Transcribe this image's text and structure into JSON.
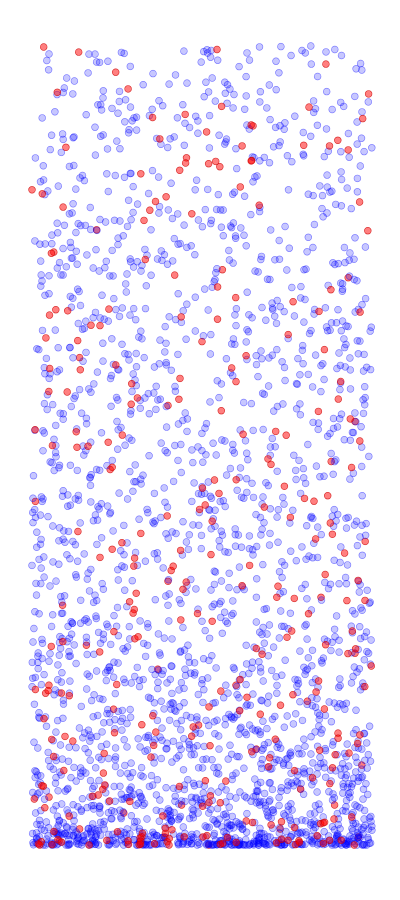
{
  "chart_data": {
    "type": "scatter",
    "title": "",
    "xlabel": "",
    "ylabel": "",
    "xlim": [
      0,
      1
    ],
    "ylim": [
      0,
      1
    ],
    "grid": false,
    "axes_visible": false,
    "legend": "none",
    "colors": {
      "blue": "#0000ff",
      "red": "#ff0000"
    },
    "series": [
      {
        "color": "#0000ff",
        "points": [
          [
            0.05,
            0.99
          ],
          [
            0.19,
            0.98
          ],
          [
            0.82,
            1.0
          ],
          [
            0.97,
            0.97
          ],
          [
            0.53,
            0.96
          ],
          [
            0.12,
            0.94
          ],
          [
            0.67,
            0.93
          ],
          [
            0.03,
            0.91
          ],
          [
            0.3,
            0.91
          ],
          [
            0.57,
            0.88
          ],
          [
            0.09,
            0.89
          ],
          [
            0.73,
            0.88
          ],
          [
            0.01,
            0.86
          ],
          [
            0.22,
            0.84
          ],
          [
            0.65,
            0.83
          ],
          [
            0.48,
            0.82
          ],
          [
            0.91,
            0.8
          ],
          [
            0.11,
            0.79
          ],
          [
            0.35,
            0.77
          ],
          [
            0.63,
            0.75
          ],
          [
            0.95,
            0.76
          ],
          [
            0.29,
            0.73
          ],
          [
            0.8,
            0.72
          ],
          [
            0.05,
            0.69
          ],
          [
            0.43,
            0.69
          ],
          [
            0.9,
            0.67
          ],
          [
            0.18,
            0.66
          ],
          [
            0.6,
            0.65
          ],
          [
            0.72,
            0.62
          ],
          [
            0.02,
            0.62
          ],
          [
            0.33,
            0.61
          ],
          [
            0.85,
            0.6
          ],
          [
            0.14,
            0.57
          ],
          [
            0.55,
            0.56
          ],
          [
            0.98,
            0.56
          ],
          [
            0.25,
            0.53
          ],
          [
            0.68,
            0.52
          ],
          [
            0.07,
            0.5
          ],
          [
            0.42,
            0.5
          ],
          [
            0.88,
            0.49
          ],
          [
            0.19,
            0.47
          ],
          [
            0.61,
            0.46
          ],
          [
            0.36,
            0.44
          ],
          [
            0.79,
            0.44
          ],
          [
            0.03,
            0.43
          ],
          [
            0.52,
            0.42
          ],
          [
            0.93,
            0.41
          ],
          [
            0.27,
            0.4
          ],
          [
            0.7,
            0.39
          ],
          [
            0.12,
            0.38
          ],
          [
            0.46,
            0.37
          ],
          [
            0.84,
            0.36
          ],
          [
            0.0,
            0.35
          ],
          [
            0.31,
            0.35
          ],
          [
            0.58,
            0.34
          ],
          [
            0.96,
            0.33
          ],
          [
            0.21,
            0.32
          ],
          [
            0.66,
            0.31
          ],
          [
            0.4,
            0.3
          ],
          [
            0.09,
            0.29
          ],
          [
            0.76,
            0.29
          ],
          [
            0.5,
            0.28
          ],
          [
            0.89,
            0.27
          ],
          [
            0.16,
            0.26
          ],
          [
            0.34,
            0.25
          ],
          [
            0.63,
            0.25
          ],
          [
            0.99,
            0.24
          ],
          [
            0.05,
            0.23
          ],
          [
            0.45,
            0.22
          ],
          [
            0.81,
            0.22
          ],
          [
            0.24,
            0.21
          ],
          [
            0.57,
            0.2
          ],
          [
            0.11,
            0.19
          ],
          [
            0.72,
            0.19
          ],
          [
            0.38,
            0.18
          ],
          [
            0.92,
            0.17
          ],
          [
            0.02,
            0.16
          ],
          [
            0.29,
            0.16
          ],
          [
            0.64,
            0.15
          ],
          [
            0.48,
            0.14
          ],
          [
            0.85,
            0.14
          ],
          [
            0.17,
            0.13
          ],
          [
            0.55,
            0.12
          ],
          [
            0.97,
            0.12
          ],
          [
            0.07,
            0.11
          ],
          [
            0.36,
            0.11
          ],
          [
            0.74,
            0.1
          ],
          [
            0.26,
            0.09
          ],
          [
            0.6,
            0.09
          ],
          [
            0.88,
            0.08
          ],
          [
            0.13,
            0.08
          ],
          [
            0.43,
            0.07
          ],
          [
            0.79,
            0.07
          ],
          [
            0.01,
            0.06
          ],
          [
            0.32,
            0.06
          ],
          [
            0.67,
            0.05
          ],
          [
            0.95,
            0.05
          ],
          [
            0.2,
            0.04
          ],
          [
            0.52,
            0.04
          ],
          [
            0.08,
            0.03
          ],
          [
            0.41,
            0.03
          ],
          [
            0.83,
            0.03
          ],
          [
            0.28,
            0.02
          ],
          [
            0.62,
            0.02
          ],
          [
            0.99,
            0.02
          ],
          [
            0.15,
            0.01
          ],
          [
            0.47,
            0.01
          ],
          [
            0.76,
            0.01
          ],
          [
            0.04,
            0.0
          ],
          [
            0.35,
            0.0
          ],
          [
            0.69,
            0.0
          ],
          [
            0.91,
            0.0
          ],
          [
            0.23,
            0.005
          ],
          [
            0.58,
            0.005
          ]
        ]
      },
      {
        "color": "#ff0000",
        "points": [
          [
            0.99,
            0.94
          ],
          [
            0.65,
            0.9
          ],
          [
            0.93,
            0.87
          ],
          [
            0.32,
            0.84
          ],
          [
            0.0,
            0.82
          ],
          [
            0.47,
            0.79
          ],
          [
            0.19,
            0.77
          ],
          [
            0.56,
            0.72
          ],
          [
            0.93,
            0.71
          ],
          [
            0.07,
            0.67
          ],
          [
            0.2,
            0.65
          ],
          [
            0.5,
            0.63
          ],
          [
            0.86,
            0.62
          ],
          [
            0.14,
            0.61
          ],
          [
            0.6,
            0.58
          ],
          [
            0.4,
            0.55
          ],
          [
            0.95,
            0.53
          ],
          [
            0.06,
            0.5
          ],
          [
            0.88,
            0.48
          ],
          [
            0.23,
            0.47
          ],
          [
            0.55,
            0.44
          ],
          [
            0.01,
            0.43
          ],
          [
            0.76,
            0.41
          ],
          [
            0.32,
            0.39
          ],
          [
            0.98,
            0.38
          ],
          [
            0.2,
            0.36
          ],
          [
            0.64,
            0.35
          ],
          [
            0.4,
            0.33
          ],
          [
            0.85,
            0.31
          ],
          [
            0.09,
            0.3
          ],
          [
            0.53,
            0.28
          ],
          [
            0.75,
            0.26
          ],
          [
            0.16,
            0.25
          ],
          [
            0.95,
            0.24
          ],
          [
            0.37,
            0.22
          ],
          [
            0.6,
            0.2
          ],
          [
            0.04,
            0.19
          ],
          [
            0.81,
            0.18
          ],
          [
            0.24,
            0.17
          ],
          [
            0.49,
            0.15
          ],
          [
            0.9,
            0.14
          ],
          [
            0.12,
            0.13
          ],
          [
            0.66,
            0.12
          ],
          [
            0.35,
            0.11
          ],
          [
            0.97,
            0.1
          ],
          [
            0.21,
            0.09
          ],
          [
            0.57,
            0.08
          ],
          [
            0.79,
            0.07
          ],
          [
            0.05,
            0.06
          ],
          [
            0.44,
            0.05
          ],
          [
            0.89,
            0.05
          ],
          [
            0.27,
            0.04
          ],
          [
            0.63,
            0.03
          ],
          [
            0.14,
            0.02
          ],
          [
            0.73,
            0.02
          ],
          [
            0.39,
            0.01
          ],
          [
            0.96,
            0.01
          ],
          [
            0.52,
            0.0
          ],
          [
            0.08,
            0.005
          ]
        ]
      }
    ]
  }
}
